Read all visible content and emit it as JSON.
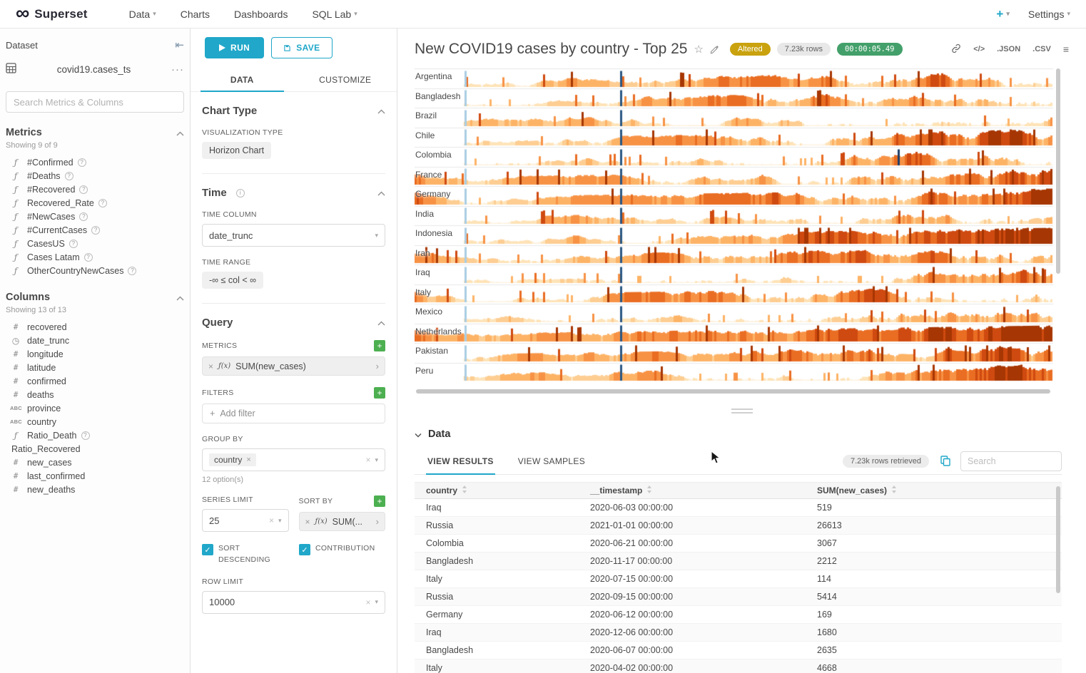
{
  "colors": {
    "primary": "#20a7c9",
    "altered_badge_bg": "#c9a20e",
    "timer_badge_bg": "#43a06a",
    "add_button_green": "#4caf50"
  },
  "icons": {
    "fx": "ƒ(x)",
    "function": "ƒ",
    "numeric": "#",
    "text": "ABC",
    "clock": "◷",
    "code": "</>"
  },
  "navbar": {
    "brand": "Superset",
    "items": [
      {
        "label": "Data",
        "caret": true
      },
      {
        "label": "Charts",
        "caret": false
      },
      {
        "label": "Dashboards",
        "caret": false
      },
      {
        "label": "SQL Lab",
        "caret": true
      }
    ],
    "new_label": "+",
    "settings_label": "Settings"
  },
  "dataset": {
    "panel_title": "Dataset",
    "name": "covid19.cases_ts",
    "more_label": "···",
    "search_placeholder": "Search Metrics & Columns",
    "metrics_title": "Metrics",
    "metrics_showing": "Showing 9 of 9",
    "metrics": [
      "#Confirmed",
      "#Deaths",
      "#Recovered",
      "Recovered_Rate",
      "#NewCases",
      "#CurrentCases",
      "CasesUS",
      "Cases Latam",
      "OtherCountryNewCases"
    ],
    "columns_title": "Columns",
    "columns_showing": "Showing 13 of 13",
    "columns": [
      {
        "name": "recovered",
        "type": "num"
      },
      {
        "name": "date_trunc",
        "type": "time"
      },
      {
        "name": "longitude",
        "type": "num"
      },
      {
        "name": "latitude",
        "type": "num"
      },
      {
        "name": "confirmed",
        "type": "num"
      },
      {
        "name": "deaths",
        "type": "num"
      },
      {
        "name": "province",
        "type": "text"
      },
      {
        "name": "country",
        "type": "text"
      },
      {
        "name": "Ratio_Death",
        "type": "func",
        "help": true
      },
      {
        "name": "Ratio_Recovered",
        "type": "none"
      },
      {
        "name": "new_cases",
        "type": "num"
      },
      {
        "name": "last_confirmed",
        "type": "num"
      },
      {
        "name": "new_deaths",
        "type": "num"
      }
    ]
  },
  "controls": {
    "run_label": "RUN",
    "save_label": "SAVE",
    "tabs": [
      "DATA",
      "CUSTOMIZE"
    ],
    "chart_type_title": "Chart Type",
    "viz_type_label": "VISUALIZATION TYPE",
    "viz_type_value": "Horizon Chart",
    "time_title": "Time",
    "time_column_label": "TIME COLUMN",
    "time_column_value": "date_trunc",
    "time_range_label": "TIME RANGE",
    "time_range_value": "-∞ ≤ col < ∞",
    "query_title": "Query",
    "metrics_label": "METRICS",
    "metric_value": "SUM(new_cases)",
    "filters_label": "FILTERS",
    "add_filter_label": "Add filter",
    "group_by_label": "GROUP BY",
    "group_by_value": "country",
    "options_hint": "12 option(s)",
    "series_limit_label": "SERIES LIMIT",
    "series_limit_value": "25",
    "sort_by_label": "SORT BY",
    "sort_by_value": "SUM(...",
    "sort_descending_label": "SORT DESCENDING",
    "contribution_label": "CONTRIBUTION",
    "row_limit_label": "ROW LIMIT",
    "row_limit_value": "10000"
  },
  "chart": {
    "title": "New COVID19 cases by country - Top 25",
    "altered_badge": "Altered",
    "rows_badge": "7.23k rows",
    "timer_badge": "00:00:05.49",
    "json_label": ".JSON",
    "csv_label": ".CSV",
    "type": "horizon",
    "palette": [
      "#fdf0dd",
      "#fee3b8",
      "#fdcd92",
      "#fdb366",
      "#f79245",
      "#e96d22",
      "#cf4a10",
      "#a63603"
    ],
    "marks_default": [
      {
        "p": 0.078,
        "c": "#a9cde3"
      },
      {
        "p": 0.322,
        "c": "#2a5783"
      }
    ],
    "countries": [
      {
        "label": "Argentina",
        "early": false
      },
      {
        "label": "Bangladesh",
        "early": false
      },
      {
        "label": "Brazil",
        "early": false
      },
      {
        "label": "Chile",
        "early": false
      },
      {
        "label": "Colombia",
        "early": false,
        "extra_spike": 0.756
      },
      {
        "label": "France",
        "early": true
      },
      {
        "label": "Germany",
        "early": true
      },
      {
        "label": "India",
        "early": false
      },
      {
        "label": "Indonesia",
        "early": false
      },
      {
        "label": "Iran",
        "early": true
      },
      {
        "label": "Iraq",
        "early": false
      },
      {
        "label": "Italy",
        "early": true
      },
      {
        "label": "Mexico",
        "early": false
      },
      {
        "label": "Netherlands",
        "early": true
      },
      {
        "label": "Pakistan",
        "early": false
      },
      {
        "label": "Peru",
        "early": false
      }
    ]
  },
  "data_panel": {
    "title": "Data",
    "tabs": [
      "VIEW RESULTS",
      "VIEW SAMPLES"
    ],
    "rows_retrieved": "7.23k rows retrieved",
    "search_placeholder": "Search",
    "headers": [
      "country",
      "__timestamp",
      "SUM(new_cases)"
    ],
    "rows": [
      [
        "Iraq",
        "2020-06-03 00:00:00",
        "519"
      ],
      [
        "Russia",
        "2021-01-01 00:00:00",
        "26613"
      ],
      [
        "Colombia",
        "2020-06-21 00:00:00",
        "3067"
      ],
      [
        "Bangladesh",
        "2020-11-17 00:00:00",
        "2212"
      ],
      [
        "Italy",
        "2020-07-15 00:00:00",
        "114"
      ],
      [
        "Russia",
        "2020-09-15 00:00:00",
        "5414"
      ],
      [
        "Germany",
        "2020-06-12 00:00:00",
        "169"
      ],
      [
        "Iraq",
        "2020-12-06 00:00:00",
        "1680"
      ],
      [
        "Bangladesh",
        "2020-06-07 00:00:00",
        "2635"
      ],
      [
        "Italy",
        "2020-04-02 00:00:00",
        "4668"
      ]
    ]
  }
}
